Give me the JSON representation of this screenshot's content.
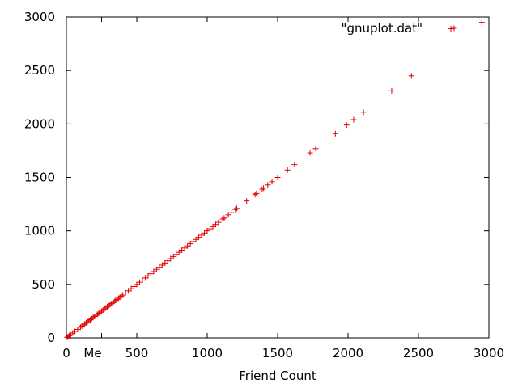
{
  "chart_data": {
    "type": "scatter",
    "title": "",
    "xlabel": "Friend Count",
    "ylabel": "",
    "xlim": [
      0,
      3000
    ],
    "ylim": [
      0,
      3000
    ],
    "grid": false,
    "legend": "top-right",
    "x_ticks": [
      {
        "value": 0,
        "label": "0"
      },
      {
        "value": 500,
        "label": "500"
      },
      {
        "value": 1000,
        "label": "1000"
      },
      {
        "value": 1500,
        "label": "1500"
      },
      {
        "value": 2000,
        "label": "2000"
      },
      {
        "value": 2500,
        "label": "2500"
      },
      {
        "value": 3000,
        "label": "3000"
      }
    ],
    "x_marker": {
      "value": 250,
      "label": "Me"
    },
    "y_ticks": [
      {
        "value": 0,
        "label": "0"
      },
      {
        "value": 500,
        "label": "500"
      },
      {
        "value": 1000,
        "label": "1000"
      },
      {
        "value": 1500,
        "label": "1500"
      },
      {
        "value": 2000,
        "label": "2000"
      },
      {
        "value": 2500,
        "label": "2500"
      },
      {
        "value": 3000,
        "label": "3000"
      }
    ],
    "series": [
      {
        "name": "\"gnuplot.dat\"",
        "color": "#e00000",
        "marker": "plus",
        "x": [
          5,
          12,
          20,
          30,
          45,
          60,
          80,
          100,
          110,
          120,
          130,
          140,
          150,
          160,
          170,
          180,
          190,
          200,
          210,
          220,
          230,
          240,
          250,
          260,
          270,
          280,
          290,
          300,
          310,
          320,
          330,
          340,
          350,
          360,
          370,
          380,
          390,
          400,
          420,
          440,
          460,
          480,
          500,
          520,
          540,
          560,
          580,
          600,
          620,
          640,
          660,
          680,
          700,
          720,
          740,
          760,
          780,
          800,
          820,
          840,
          860,
          880,
          900,
          920,
          940,
          960,
          980,
          1000,
          1020,
          1040,
          1060,
          1080,
          1110,
          1120,
          1150,
          1170,
          1200,
          1210,
          1280,
          1340,
          1350,
          1390,
          1400,
          1430,
          1460,
          1500,
          1570,
          1620,
          1730,
          1770,
          1910,
          1990,
          2040,
          2110,
          2310,
          2450,
          2730,
          2950
        ],
        "y": [
          5,
          12,
          20,
          30,
          45,
          60,
          80,
          100,
          110,
          120,
          130,
          140,
          150,
          160,
          170,
          180,
          190,
          200,
          210,
          220,
          230,
          240,
          250,
          260,
          270,
          280,
          290,
          300,
          310,
          320,
          330,
          340,
          350,
          360,
          370,
          380,
          390,
          400,
          420,
          440,
          460,
          480,
          500,
          520,
          540,
          560,
          580,
          600,
          620,
          640,
          660,
          680,
          700,
          720,
          740,
          760,
          780,
          800,
          820,
          840,
          860,
          880,
          900,
          920,
          940,
          960,
          980,
          1000,
          1020,
          1040,
          1060,
          1080,
          1110,
          1120,
          1150,
          1170,
          1200,
          1210,
          1280,
          1340,
          1350,
          1390,
          1400,
          1430,
          1460,
          1500,
          1570,
          1620,
          1730,
          1770,
          1910,
          1990,
          2040,
          2110,
          2310,
          2450,
          2890,
          2950
        ]
      }
    ]
  }
}
